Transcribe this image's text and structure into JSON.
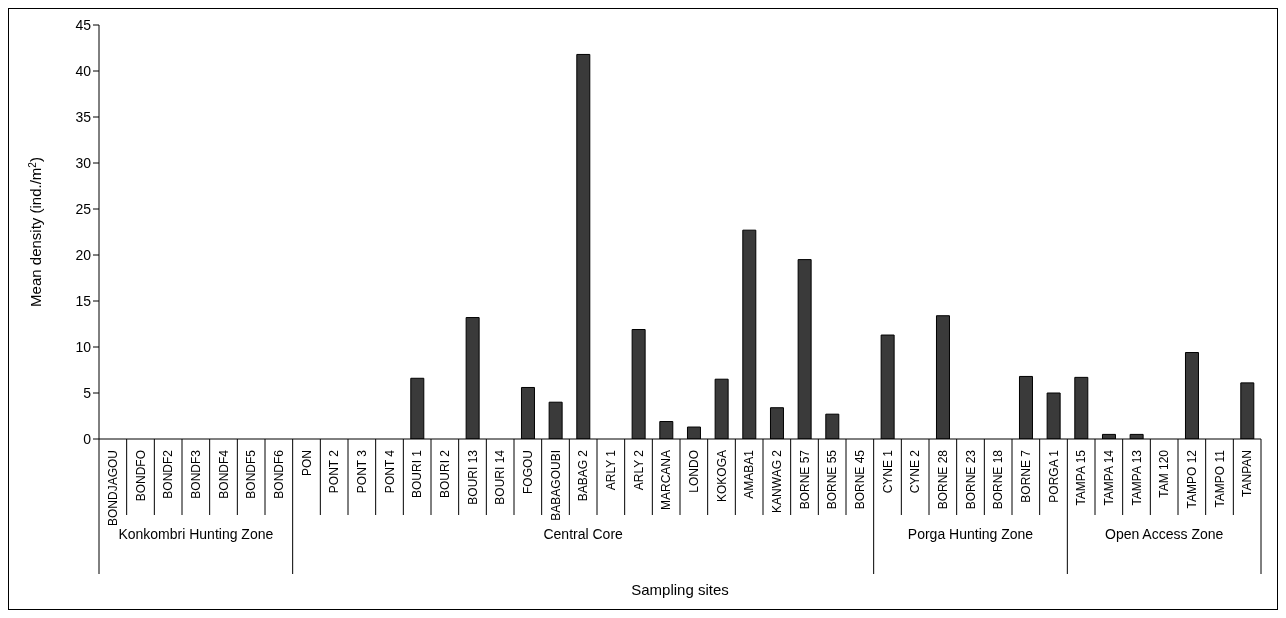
{
  "chart_data": {
    "type": "bar",
    "xlabel": "Sampling sites",
    "ylabel": "Mean density (ind./m$^{2}$)",
    "categories": [
      "BONDJAGOU",
      "BONDFO",
      "BONDF2",
      "BONDF3",
      "BONDF4",
      "BONDF5",
      "BONDF6",
      "PON",
      "PONT 2",
      "PONT 3",
      "PONT 4",
      "BOURI 1",
      "BOURI 2",
      "BOURI 13",
      "BOURI 14",
      "FOGOU",
      "BABAGOUBI",
      "BABAG 2",
      "ARLY 1",
      "ARLY 2",
      "MARCANA",
      "LONDO",
      "KOKOGA",
      "AMABA1",
      "KANWAG 2",
      "BORNE 57",
      "BORNE 55",
      "BORNE 45",
      "CYNE 1",
      "CYNE 2",
      "BORNE 28",
      "BORNE 23",
      "BORNE 18",
      "BORNE 7",
      "PORGA 1",
      "TAMPA 15",
      "TAMPA  14",
      "TAMPA 13",
      "TAM 120",
      "TAMPO 12",
      "TAMPO 11",
      "TANPAN"
    ],
    "values": [
      0,
      0,
      0,
      0,
      0,
      0,
      0,
      0,
      0,
      0,
      0,
      6.6,
      0,
      13.2,
      0,
      5.6,
      4.0,
      41.8,
      0,
      11.9,
      1.9,
      1.3,
      6.5,
      22.7,
      3.4,
      19.5,
      2.7,
      0,
      11.3,
      0,
      13.4,
      0,
      0,
      6.8,
      5.0,
      6.7,
      0.5,
      0.5,
      0,
      9.4,
      0,
      6.1
    ],
    "color": "#3a3a3a",
    "ylim": [
      0,
      45
    ],
    "yticks": [
      0,
      5,
      10,
      15,
      20,
      25,
      30,
      35,
      40,
      45
    ],
    "annotations": [
      "Konkombri Hunting Zone",
      "Central Core",
      "Porga Hunting Zone",
      "Open Access Zone"
    ]
  }
}
